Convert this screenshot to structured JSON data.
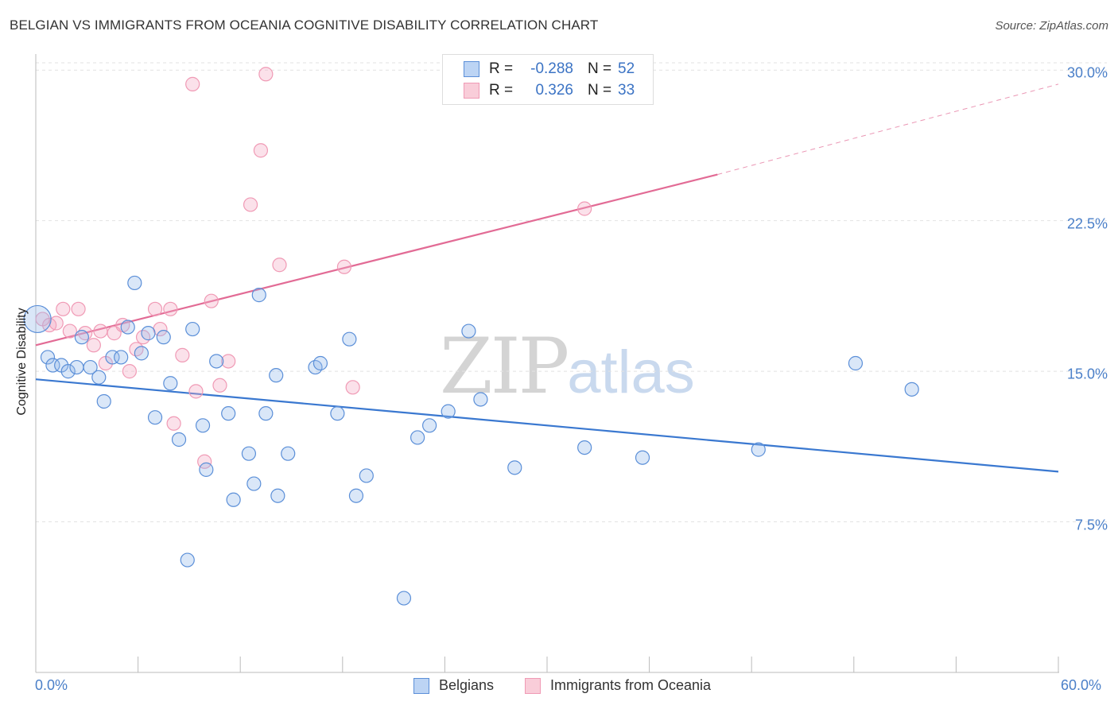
{
  "title": "BELGIAN VS IMMIGRANTS FROM OCEANIA COGNITIVE DISABILITY CORRELATION CHART",
  "source": "Source: ZipAtlas.com",
  "watermark": {
    "part1": "ZIP",
    "part2": "atlas"
  },
  "legend": {
    "rows": [
      {
        "r_label": "R =",
        "r_value": "-0.288",
        "n_label": "N =",
        "n_value": "52"
      },
      {
        "r_label": "R =",
        "r_value": "0.326",
        "n_label": "N =",
        "n_value": "33"
      }
    ]
  },
  "bottom_legend": {
    "series1": "Belgians",
    "series2": "Immigrants from Oceania"
  },
  "chart_data": {
    "type": "scatter",
    "title": "BELGIAN VS IMMIGRANTS FROM OCEANIA COGNITIVE DISABILITY CORRELATION CHART",
    "xlabel": "",
    "ylabel": "Cognitive Disability",
    "xlim": [
      0,
      60
    ],
    "ylim": [
      0,
      30.8
    ],
    "x_tick_labels": [
      "0.0%",
      "60.0%"
    ],
    "y_ticks": [
      7.5,
      15.0,
      22.5,
      30.0
    ],
    "y_tick_labels": [
      "7.5%",
      "15.0%",
      "22.5%",
      "30.0%"
    ],
    "colors": {
      "belgians": "#5b8fd8",
      "oceania": "#f09ab5",
      "belgians_line": "#3a78d0",
      "oceania_line": "#e26b95"
    },
    "series": [
      {
        "name": "Belgians",
        "trend": {
          "x0": 0,
          "y0": 14.6,
          "x1": 60,
          "y1": 10.0
        },
        "points": [
          [
            0.1,
            17.6
          ],
          [
            0.7,
            15.7
          ],
          [
            1.0,
            15.3
          ],
          [
            1.5,
            15.3
          ],
          [
            1.9,
            15.0
          ],
          [
            2.4,
            15.2
          ],
          [
            2.7,
            16.7
          ],
          [
            3.2,
            15.2
          ],
          [
            3.7,
            14.7
          ],
          [
            4.0,
            13.5
          ],
          [
            4.5,
            15.7
          ],
          [
            5.0,
            15.7
          ],
          [
            5.4,
            17.2
          ],
          [
            5.8,
            19.4
          ],
          [
            6.2,
            15.9
          ],
          [
            6.6,
            16.9
          ],
          [
            7.0,
            12.7
          ],
          [
            7.5,
            16.7
          ],
          [
            7.9,
            14.4
          ],
          [
            8.4,
            11.6
          ],
          [
            8.9,
            5.6
          ],
          [
            9.2,
            17.1
          ],
          [
            9.8,
            12.3
          ],
          [
            10.0,
            10.1
          ],
          [
            10.6,
            15.5
          ],
          [
            11.3,
            12.9
          ],
          [
            11.6,
            8.6
          ],
          [
            12.5,
            10.9
          ],
          [
            12.8,
            9.4
          ],
          [
            13.1,
            18.8
          ],
          [
            13.5,
            12.9
          ],
          [
            14.1,
            14.8
          ],
          [
            14.2,
            8.8
          ],
          [
            14.8,
            10.9
          ],
          [
            16.4,
            15.2
          ],
          [
            16.7,
            15.4
          ],
          [
            17.7,
            12.9
          ],
          [
            18.4,
            16.6
          ],
          [
            18.8,
            8.8
          ],
          [
            19.4,
            9.8
          ],
          [
            21.6,
            3.7
          ],
          [
            22.4,
            11.7
          ],
          [
            23.1,
            12.3
          ],
          [
            24.2,
            13.0
          ],
          [
            25.4,
            17.0
          ],
          [
            26.1,
            13.6
          ],
          [
            28.1,
            10.2
          ],
          [
            32.2,
            11.2
          ],
          [
            35.6,
            10.7
          ],
          [
            42.4,
            11.1
          ],
          [
            48.1,
            15.4
          ],
          [
            51.4,
            14.1
          ]
        ]
      },
      {
        "name": "Immigrants from Oceania",
        "trend": {
          "x0": 0,
          "y0": 16.3,
          "x1": 40,
          "y1": 24.8,
          "dash_x1": 60,
          "dash_y1": 29.3
        },
        "points": [
          [
            0.4,
            17.6
          ],
          [
            0.8,
            17.3
          ],
          [
            1.2,
            17.4
          ],
          [
            1.6,
            18.1
          ],
          [
            2.0,
            17.0
          ],
          [
            2.5,
            18.1
          ],
          [
            2.9,
            16.9
          ],
          [
            3.4,
            16.3
          ],
          [
            3.8,
            17.0
          ],
          [
            4.1,
            15.4
          ],
          [
            4.6,
            16.9
          ],
          [
            5.1,
            17.3
          ],
          [
            5.5,
            15.0
          ],
          [
            5.9,
            16.1
          ],
          [
            6.3,
            16.7
          ],
          [
            7.0,
            18.1
          ],
          [
            7.3,
            17.1
          ],
          [
            7.9,
            18.1
          ],
          [
            8.1,
            12.4
          ],
          [
            8.6,
            15.8
          ],
          [
            9.2,
            29.3
          ],
          [
            9.4,
            14.0
          ],
          [
            9.9,
            10.5
          ],
          [
            10.3,
            18.5
          ],
          [
            10.8,
            14.3
          ],
          [
            11.3,
            15.5
          ],
          [
            12.6,
            23.3
          ],
          [
            13.2,
            26.0
          ],
          [
            13.5,
            29.8
          ],
          [
            14.3,
            20.3
          ],
          [
            18.1,
            20.2
          ],
          [
            18.6,
            14.2
          ],
          [
            32.2,
            23.1
          ]
        ]
      }
    ]
  }
}
